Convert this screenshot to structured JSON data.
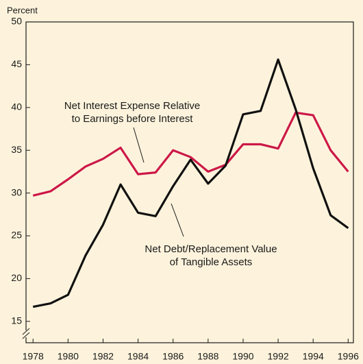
{
  "chart_data": {
    "type": "line",
    "y_label": "Percent",
    "x": [
      1978,
      1979,
      1980,
      1981,
      1982,
      1983,
      1984,
      1985,
      1986,
      1987,
      1988,
      1989,
      1990,
      1991,
      1992,
      1993,
      1994,
      1995,
      1996
    ],
    "series": [
      {
        "name": [
          "Net Interest Expense Relative",
          "to Earnings before Interest"
        ],
        "color": "#cc1848",
        "values": [
          29.7,
          30.2,
          31.6,
          33.1,
          34.0,
          35.3,
          32.2,
          32.4,
          35.0,
          34.2,
          32.5,
          33.3,
          35.7,
          35.7,
          35.2,
          39.4,
          39.1,
          35.0,
          32.5
        ]
      },
      {
        "name": [
          "Net Debt/Replacement Value",
          "of Tangible Assets"
        ],
        "color": "#111111",
        "values": [
          16.7,
          17.1,
          18.1,
          22.7,
          26.3,
          31.0,
          27.7,
          27.3,
          30.8,
          33.9,
          31.1,
          33.2,
          39.2,
          39.6,
          45.6,
          39.8,
          32.9,
          27.4,
          25.9
        ]
      }
    ],
    "xlim": [
      1977.6,
      1996.3
    ],
    "xticks": [
      1978,
      1980,
      1982,
      1984,
      1986,
      1988,
      1990,
      1992,
      1994,
      1996
    ],
    "ylim": [
      12.5,
      50
    ],
    "yticks": [
      15,
      20,
      25,
      30,
      35,
      40,
      45,
      50
    ],
    "grid": false
  }
}
